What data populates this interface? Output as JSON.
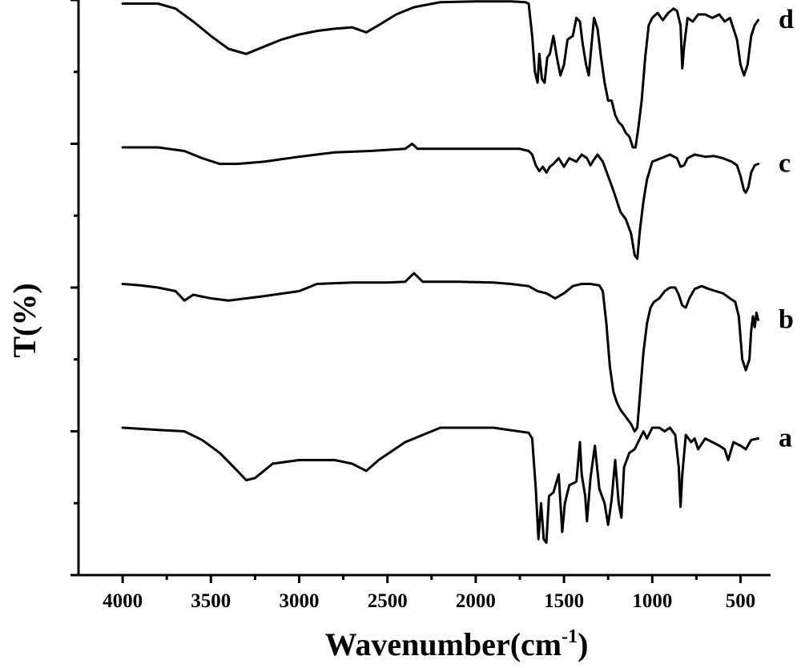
{
  "chart_data": {
    "type": "line",
    "xlabel": "Wavenumber(cm",
    "xlabel_sup": "-1",
    "xlabel_close": ")",
    "ylabel": "T(%)",
    "xlim": [
      4250,
      330
    ],
    "x_reversed": true,
    "xticks": [
      4000,
      3500,
      3000,
      2500,
      2000,
      1500,
      1000,
      500
    ],
    "xtick_labels": [
      "4000",
      "3500",
      "3000",
      "2500",
      "2000",
      "1500",
      "1000",
      "500"
    ],
    "yticks_count": 8,
    "ylim": [
      0,
      8
    ],
    "grid": false,
    "series": [
      {
        "name": "a",
        "baseline": 2.05,
        "points": [
          [
            4000,
            2.05
          ],
          [
            3800,
            2.02
          ],
          [
            3650,
            2.0
          ],
          [
            3550,
            1.88
          ],
          [
            3450,
            1.7
          ],
          [
            3350,
            1.45
          ],
          [
            3300,
            1.32
          ],
          [
            3250,
            1.35
          ],
          [
            3150,
            1.55
          ],
          [
            3000,
            1.6
          ],
          [
            2800,
            1.6
          ],
          [
            2700,
            1.55
          ],
          [
            2620,
            1.45
          ],
          [
            2550,
            1.6
          ],
          [
            2400,
            1.85
          ],
          [
            2200,
            2.05
          ],
          [
            1900,
            2.05
          ],
          [
            1700,
            1.98
          ],
          [
            1680,
            1.9
          ],
          [
            1660,
            1.2
          ],
          [
            1645,
            0.5
          ],
          [
            1630,
            1.0
          ],
          [
            1615,
            0.5
          ],
          [
            1600,
            0.45
          ],
          [
            1585,
            1.1
          ],
          [
            1560,
            1.15
          ],
          [
            1530,
            1.4
          ],
          [
            1510,
            0.6
          ],
          [
            1495,
            1.0
          ],
          [
            1470,
            1.25
          ],
          [
            1430,
            1.3
          ],
          [
            1410,
            1.85
          ],
          [
            1400,
            1.4
          ],
          [
            1380,
            1.1
          ],
          [
            1370,
            0.75
          ],
          [
            1350,
            1.35
          ],
          [
            1325,
            1.8
          ],
          [
            1300,
            1.2
          ],
          [
            1270,
            1.0
          ],
          [
            1250,
            0.7
          ],
          [
            1230,
            1.05
          ],
          [
            1210,
            1.6
          ],
          [
            1190,
            1.0
          ],
          [
            1175,
            0.8
          ],
          [
            1160,
            1.5
          ],
          [
            1130,
            1.7
          ],
          [
            1100,
            1.75
          ],
          [
            1080,
            1.85
          ],
          [
            1050,
            2.0
          ],
          [
            1030,
            1.9
          ],
          [
            1000,
            2.05
          ],
          [
            960,
            2.05
          ],
          [
            930,
            2.0
          ],
          [
            900,
            2.05
          ],
          [
            870,
            1.95
          ],
          [
            850,
            1.5
          ],
          [
            840,
            0.95
          ],
          [
            830,
            1.4
          ],
          [
            810,
            1.95
          ],
          [
            780,
            1.85
          ],
          [
            760,
            1.9
          ],
          [
            740,
            1.75
          ],
          [
            700,
            1.9
          ],
          [
            660,
            1.85
          ],
          [
            620,
            1.8
          ],
          [
            590,
            1.75
          ],
          [
            570,
            1.6
          ],
          [
            540,
            1.85
          ],
          [
            500,
            1.8
          ],
          [
            470,
            1.75
          ],
          [
            440,
            1.88
          ],
          [
            400,
            1.9
          ]
        ]
      },
      {
        "name": "b",
        "baseline": 4.05,
        "points": [
          [
            4000,
            4.05
          ],
          [
            3900,
            4.03
          ],
          [
            3800,
            4.0
          ],
          [
            3700,
            3.95
          ],
          [
            3650,
            3.82
          ],
          [
            3600,
            3.9
          ],
          [
            3500,
            3.85
          ],
          [
            3400,
            3.82
          ],
          [
            3300,
            3.85
          ],
          [
            3200,
            3.88
          ],
          [
            3000,
            3.95
          ],
          [
            2900,
            4.05
          ],
          [
            2700,
            4.07
          ],
          [
            2500,
            4.07
          ],
          [
            2400,
            4.08
          ],
          [
            2350,
            4.2
          ],
          [
            2300,
            4.08
          ],
          [
            2100,
            4.08
          ],
          [
            1900,
            4.07
          ],
          [
            1800,
            4.05
          ],
          [
            1700,
            4.02
          ],
          [
            1650,
            3.95
          ],
          [
            1600,
            3.92
          ],
          [
            1550,
            3.85
          ],
          [
            1500,
            3.92
          ],
          [
            1450,
            4.02
          ],
          [
            1400,
            4.05
          ],
          [
            1350,
            4.05
          ],
          [
            1300,
            4.03
          ],
          [
            1280,
            3.95
          ],
          [
            1260,
            3.5
          ],
          [
            1240,
            2.9
          ],
          [
            1220,
            2.55
          ],
          [
            1200,
            2.4
          ],
          [
            1180,
            2.3
          ],
          [
            1150,
            2.2
          ],
          [
            1120,
            2.1
          ],
          [
            1100,
            2.0
          ],
          [
            1085,
            2.05
          ],
          [
            1070,
            2.5
          ],
          [
            1050,
            3.1
          ],
          [
            1030,
            3.5
          ],
          [
            1010,
            3.72
          ],
          [
            990,
            3.8
          ],
          [
            960,
            3.85
          ],
          [
            930,
            3.95
          ],
          [
            900,
            4.0
          ],
          [
            870,
            4.0
          ],
          [
            850,
            3.9
          ],
          [
            830,
            3.75
          ],
          [
            810,
            3.72
          ],
          [
            790,
            3.85
          ],
          [
            760,
            3.98
          ],
          [
            720,
            4.02
          ],
          [
            680,
            3.98
          ],
          [
            640,
            3.95
          ],
          [
            600,
            3.92
          ],
          [
            560,
            3.85
          ],
          [
            530,
            3.8
          ],
          [
            510,
            3.6
          ],
          [
            490,
            3.0
          ],
          [
            470,
            2.85
          ],
          [
            450,
            3.0
          ],
          [
            440,
            3.4
          ],
          [
            430,
            3.6
          ],
          [
            420,
            3.45
          ],
          [
            410,
            3.65
          ],
          [
            400,
            3.55
          ]
        ]
      },
      {
        "name": "c",
        "baseline": 5.95,
        "points": [
          [
            4000,
            5.95
          ],
          [
            3800,
            5.95
          ],
          [
            3650,
            5.9
          ],
          [
            3550,
            5.8
          ],
          [
            3450,
            5.72
          ],
          [
            3350,
            5.72
          ],
          [
            3200,
            5.75
          ],
          [
            3000,
            5.82
          ],
          [
            2800,
            5.88
          ],
          [
            2600,
            5.9
          ],
          [
            2400,
            5.93
          ],
          [
            2360,
            6.0
          ],
          [
            2330,
            5.93
          ],
          [
            2200,
            5.93
          ],
          [
            1900,
            5.93
          ],
          [
            1750,
            5.93
          ],
          [
            1700,
            5.9
          ],
          [
            1680,
            5.85
          ],
          [
            1660,
            5.7
          ],
          [
            1640,
            5.62
          ],
          [
            1620,
            5.68
          ],
          [
            1600,
            5.6
          ],
          [
            1580,
            5.68
          ],
          [
            1560,
            5.72
          ],
          [
            1530,
            5.8
          ],
          [
            1500,
            5.68
          ],
          [
            1470,
            5.8
          ],
          [
            1430,
            5.75
          ],
          [
            1400,
            5.85
          ],
          [
            1370,
            5.8
          ],
          [
            1350,
            5.7
          ],
          [
            1330,
            5.78
          ],
          [
            1310,
            5.85
          ],
          [
            1280,
            5.75
          ],
          [
            1250,
            5.55
          ],
          [
            1220,
            5.35
          ],
          [
            1200,
            5.2
          ],
          [
            1180,
            5.05
          ],
          [
            1150,
            4.95
          ],
          [
            1120,
            4.75
          ],
          [
            1100,
            4.45
          ],
          [
            1085,
            4.4
          ],
          [
            1070,
            4.8
          ],
          [
            1050,
            5.2
          ],
          [
            1030,
            5.5
          ],
          [
            1000,
            5.75
          ],
          [
            950,
            5.8
          ],
          [
            900,
            5.85
          ],
          [
            860,
            5.8
          ],
          [
            840,
            5.68
          ],
          [
            820,
            5.7
          ],
          [
            800,
            5.8
          ],
          [
            760,
            5.85
          ],
          [
            700,
            5.82
          ],
          [
            650,
            5.83
          ],
          [
            600,
            5.8
          ],
          [
            550,
            5.75
          ],
          [
            520,
            5.7
          ],
          [
            500,
            5.55
          ],
          [
            480,
            5.35
          ],
          [
            470,
            5.32
          ],
          [
            455,
            5.4
          ],
          [
            440,
            5.6
          ],
          [
            420,
            5.7
          ],
          [
            400,
            5.72
          ]
        ]
      },
      {
        "name": "d",
        "baseline": 7.95,
        "points": [
          [
            4000,
            7.95
          ],
          [
            3800,
            7.95
          ],
          [
            3700,
            7.88
          ],
          [
            3600,
            7.7
          ],
          [
            3500,
            7.5
          ],
          [
            3400,
            7.32
          ],
          [
            3300,
            7.25
          ],
          [
            3200,
            7.35
          ],
          [
            3100,
            7.45
          ],
          [
            3000,
            7.52
          ],
          [
            2900,
            7.57
          ],
          [
            2800,
            7.6
          ],
          [
            2700,
            7.62
          ],
          [
            2620,
            7.55
          ],
          [
            2550,
            7.65
          ],
          [
            2450,
            7.8
          ],
          [
            2350,
            7.9
          ],
          [
            2200,
            7.97
          ],
          [
            2000,
            7.98
          ],
          [
            1800,
            7.98
          ],
          [
            1720,
            7.97
          ],
          [
            1700,
            7.95
          ],
          [
            1680,
            7.5
          ],
          [
            1665,
            7.0
          ],
          [
            1650,
            6.85
          ],
          [
            1640,
            7.25
          ],
          [
            1625,
            6.9
          ],
          [
            1610,
            6.85
          ],
          [
            1595,
            7.2
          ],
          [
            1580,
            7.25
          ],
          [
            1560,
            7.5
          ],
          [
            1540,
            7.2
          ],
          [
            1520,
            6.95
          ],
          [
            1500,
            7.1
          ],
          [
            1480,
            7.45
          ],
          [
            1450,
            7.5
          ],
          [
            1430,
            7.75
          ],
          [
            1410,
            7.7
          ],
          [
            1395,
            7.4
          ],
          [
            1375,
            7.1
          ],
          [
            1360,
            6.95
          ],
          [
            1345,
            7.35
          ],
          [
            1330,
            7.75
          ],
          [
            1310,
            7.6
          ],
          [
            1290,
            7.2
          ],
          [
            1270,
            6.85
          ],
          [
            1250,
            6.6
          ],
          [
            1230,
            6.6
          ],
          [
            1210,
            6.4
          ],
          [
            1190,
            6.3
          ],
          [
            1170,
            6.25
          ],
          [
            1150,
            6.15
          ],
          [
            1130,
            6.1
          ],
          [
            1110,
            5.95
          ],
          [
            1095,
            5.95
          ],
          [
            1080,
            6.2
          ],
          [
            1060,
            6.6
          ],
          [
            1040,
            7.2
          ],
          [
            1020,
            7.65
          ],
          [
            1000,
            7.75
          ],
          [
            970,
            7.82
          ],
          [
            940,
            7.72
          ],
          [
            910,
            7.82
          ],
          [
            880,
            7.88
          ],
          [
            860,
            7.85
          ],
          [
            840,
            7.65
          ],
          [
            830,
            7.05
          ],
          [
            820,
            7.35
          ],
          [
            800,
            7.75
          ],
          [
            770,
            7.7
          ],
          [
            740,
            7.8
          ],
          [
            700,
            7.8
          ],
          [
            660,
            7.75
          ],
          [
            620,
            7.8
          ],
          [
            590,
            7.7
          ],
          [
            560,
            7.75
          ],
          [
            540,
            7.6
          ],
          [
            520,
            7.45
          ],
          [
            500,
            7.1
          ],
          [
            480,
            6.95
          ],
          [
            460,
            7.1
          ],
          [
            440,
            7.5
          ],
          [
            420,
            7.65
          ],
          [
            400,
            7.72
          ]
        ]
      }
    ]
  }
}
